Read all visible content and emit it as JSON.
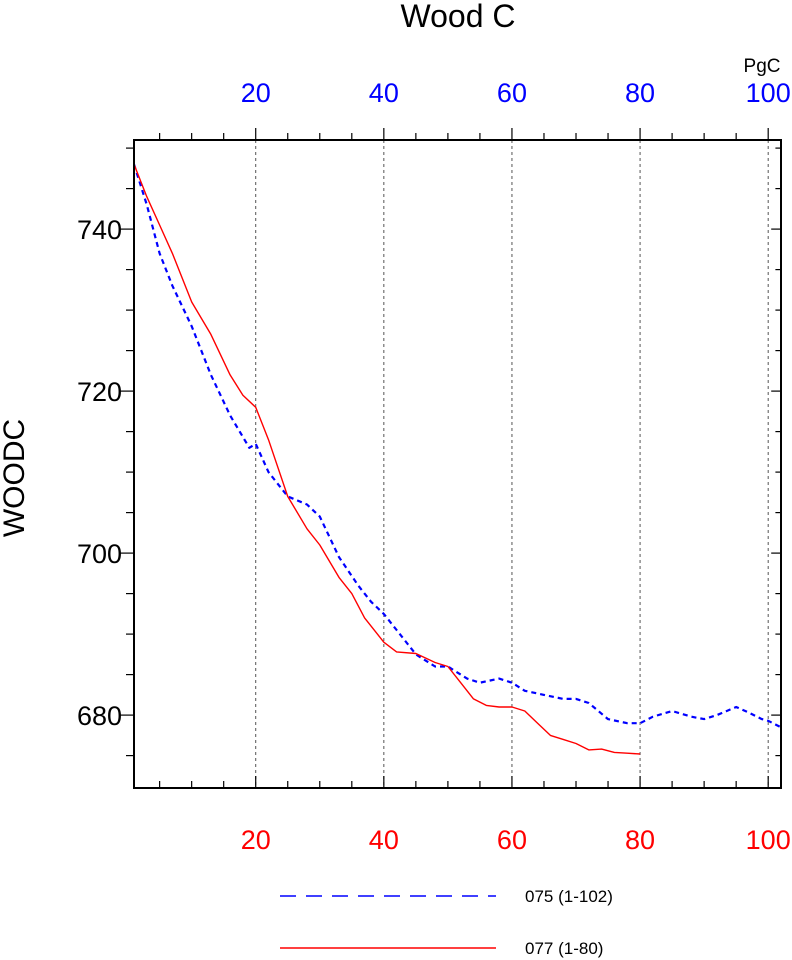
{
  "chart_data": {
    "type": "line",
    "title": "Wood C",
    "ylabel": "WOODC",
    "top_axis_unit": "PgC",
    "xlim": [
      1,
      102
    ],
    "ylim": [
      671,
      751
    ],
    "x_ticks_top": [
      "20",
      "40",
      "60",
      "80",
      "100"
    ],
    "x_ticks_bottom": [
      "20",
      "40",
      "60",
      "80",
      "100"
    ],
    "y_ticks": [
      "680",
      "700",
      "720",
      "740"
    ],
    "grid": "vertical dashed at major x ticks",
    "legend_position": "bottom-center",
    "colors": {
      "top_axis": "#0000ff",
      "bottom_axis": "#ff0000",
      "axes": "#000000"
    },
    "series": [
      {
        "name": "075 (1-102)",
        "color": "#0000ff",
        "style": "dashed",
        "x": [
          1,
          3,
          5,
          7,
          10,
          13,
          16,
          19,
          20,
          22,
          25,
          28,
          30,
          33,
          36,
          38,
          40,
          42,
          45,
          48,
          50,
          53,
          55,
          58,
          60,
          62,
          65,
          68,
          70,
          72,
          75,
          78,
          80,
          82,
          85,
          88,
          90,
          92,
          95,
          97,
          99,
          100,
          102
        ],
        "y": [
          748,
          743,
          737,
          733,
          728,
          722,
          717,
          713,
          713.5,
          710,
          707,
          706,
          704.5,
          699.5,
          696,
          694,
          692.5,
          690.5,
          687.5,
          686,
          686,
          684.5,
          684,
          684.5,
          684,
          683,
          682.5,
          682,
          682,
          681.5,
          679.5,
          679,
          679,
          679.8,
          680.5,
          679.8,
          679.5,
          680,
          681,
          680.3,
          679.5,
          679.3,
          678.5
        ]
      },
      {
        "name": "077 (1-80)",
        "color": "#ff0000",
        "style": "solid",
        "x": [
          1,
          3,
          5,
          7,
          10,
          13,
          16,
          18,
          20,
          22,
          25,
          28,
          30,
          33,
          35,
          37,
          39,
          40,
          42,
          45,
          48,
          50,
          52,
          54,
          56,
          58,
          60,
          62,
          64,
          66,
          68,
          70,
          72,
          74,
          76,
          78,
          80
        ],
        "y": [
          748,
          744,
          740.5,
          737,
          731,
          727,
          722,
          719.5,
          718,
          714,
          707,
          703,
          701,
          697,
          695,
          692,
          690,
          689,
          687.8,
          687.6,
          686.5,
          686,
          684,
          682,
          681.2,
          681,
          681,
          680.5,
          679,
          677.5,
          677,
          676.5,
          675.7,
          675.8,
          675.4,
          675.3,
          675.2
        ]
      }
    ]
  }
}
